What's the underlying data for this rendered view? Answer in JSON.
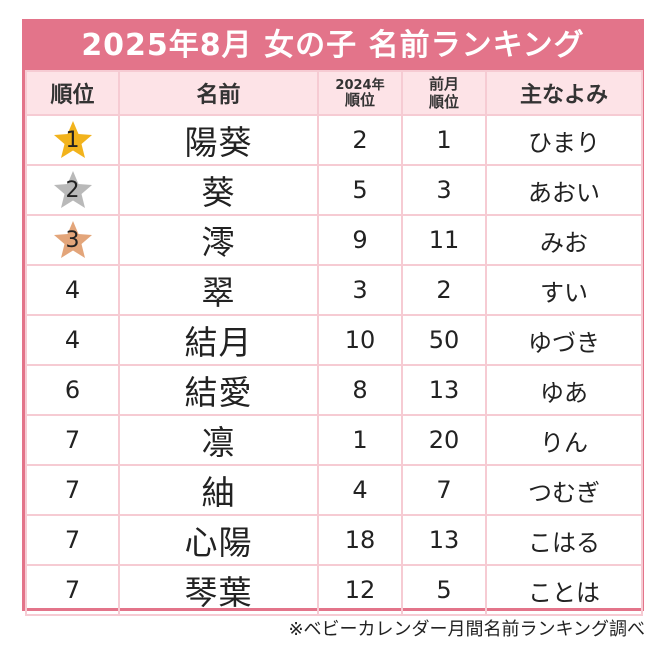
{
  "title": "2025年8月 女の子 名前ランキング",
  "headers": {
    "rank": "順位",
    "name": "名前",
    "prev_year_line1": "2024年",
    "prev_year_line2": "順位",
    "prev_month_line1": "前月",
    "prev_month_line2": "順位",
    "reading": "主なよみ"
  },
  "colors": {
    "accent": "#e3748a",
    "header_bg": "#fde3e7",
    "gold": "#f2b31c",
    "silver": "#b9b9b9",
    "bronze": "#e3a57a"
  },
  "rows": [
    {
      "rank": "1",
      "name": "陽葵",
      "y2024": "2",
      "prev_month": "1",
      "reading": "ひまり",
      "medal": "gold-star-icon"
    },
    {
      "rank": "2",
      "name": "葵",
      "y2024": "5",
      "prev_month": "3",
      "reading": "あおい",
      "medal": "silver-star-icon"
    },
    {
      "rank": "3",
      "name": "澪",
      "y2024": "9",
      "prev_month": "11",
      "reading": "みお",
      "medal": "bronze-star-icon"
    },
    {
      "rank": "4",
      "name": "翠",
      "y2024": "3",
      "prev_month": "2",
      "reading": "すい"
    },
    {
      "rank": "4",
      "name": "結月",
      "y2024": "10",
      "prev_month": "50",
      "reading": "ゆづき"
    },
    {
      "rank": "6",
      "name": "結愛",
      "y2024": "8",
      "prev_month": "13",
      "reading": "ゆあ"
    },
    {
      "rank": "7",
      "name": "凛",
      "y2024": "1",
      "prev_month": "20",
      "reading": "りん"
    },
    {
      "rank": "7",
      "name": "紬",
      "y2024": "4",
      "prev_month": "7",
      "reading": "つむぎ"
    },
    {
      "rank": "7",
      "name": "心陽",
      "y2024": "18",
      "prev_month": "13",
      "reading": "こはる"
    },
    {
      "rank": "7",
      "name": "琴葉",
      "y2024": "12",
      "prev_month": "5",
      "reading": "ことは"
    }
  ],
  "footer": "※ベビーカレンダー月間名前ランキング調べ"
}
